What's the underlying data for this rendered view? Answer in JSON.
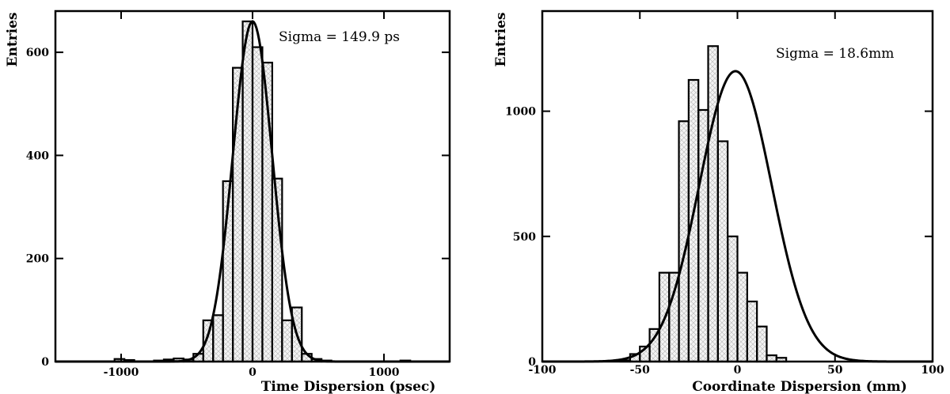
{
  "chart_data": [
    {
      "type": "bar",
      "xlabel": "Time Dispersion (psec)",
      "ylabel": "Entries",
      "annotation": "Sigma = 149.9 ps",
      "xlim": [
        -1500,
        1500
      ],
      "ylim": [
        0,
        680
      ],
      "xticks": [
        -1000,
        0,
        1000
      ],
      "yticks": [
        0,
        200,
        400,
        600
      ],
      "bin_width": 75,
      "bins_x": [
        -1500,
        -1425,
        -1350,
        -1275,
        -1200,
        -1125,
        -1050,
        -975,
        -900,
        -825,
        -750,
        -675,
        -600,
        -525,
        -450,
        -375,
        -300,
        -225,
        -150,
        -75,
        0,
        75,
        150,
        225,
        300,
        375,
        450,
        525,
        600,
        675,
        750,
        825,
        900,
        975,
        1050,
        1125,
        1200,
        1275,
        1350,
        1425
      ],
      "bins_y": [
        0,
        0,
        0,
        0,
        0,
        0,
        5,
        3,
        0,
        0,
        2,
        4,
        6,
        4,
        15,
        80,
        90,
        350,
        570,
        660,
        610,
        580,
        355,
        80,
        105,
        15,
        5,
        2,
        0,
        0,
        0,
        0,
        0,
        0,
        0,
        2,
        0,
        0,
        0,
        0
      ],
      "fit": {
        "function": "gaussian",
        "amplitude": 660,
        "mean": 0,
        "sigma": 149.9
      }
    },
    {
      "type": "bar",
      "xlabel": "Coordinate Dispersion (mm)",
      "ylabel": "Entries",
      "annotation": "Sigma = 18.6mm",
      "xlim": [
        -100,
        100
      ],
      "ylim": [
        0,
        1400
      ],
      "xticks": [
        -100,
        -50,
        0,
        50,
        100
      ],
      "yticks": [
        0,
        500,
        1000
      ],
      "bin_width": 5,
      "bins_x": [
        -100,
        -95,
        -90,
        -85,
        -80,
        -75,
        -70,
        -65,
        -60,
        -55,
        -50,
        -45,
        -40,
        -35,
        -30,
        -25,
        -20,
        -15,
        -10,
        -5,
        0,
        5,
        10,
        15,
        20,
        25,
        30,
        35,
        40,
        45,
        50,
        55,
        60,
        65,
        70,
        75,
        80,
        85,
        90,
        95
      ],
      "bins_y": [
        0,
        0,
        0,
        0,
        0,
        0,
        0,
        0,
        5,
        30,
        60,
        130,
        355,
        355,
        960,
        1125,
        1005,
        1260,
        880,
        500,
        355,
        240,
        140,
        25,
        15,
        0,
        0,
        0,
        0,
        0,
        0,
        0,
        0,
        0,
        0,
        0,
        0,
        0,
        0,
        0
      ],
      "fit": {
        "function": "gaussian",
        "amplitude": 1160,
        "mean": -1,
        "sigma": 18.6
      }
    }
  ]
}
